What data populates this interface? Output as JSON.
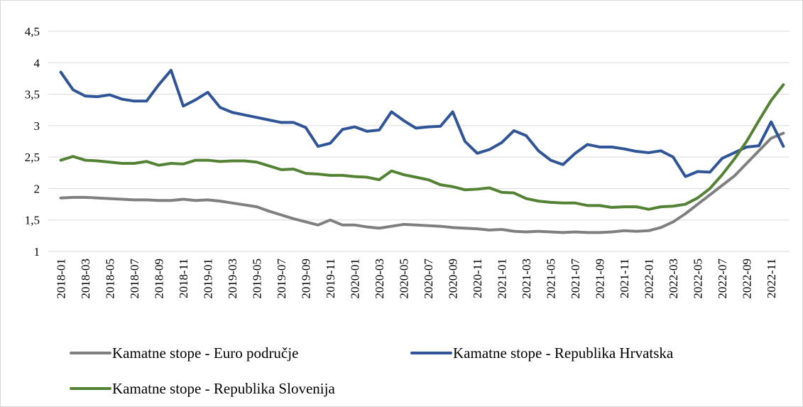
{
  "chart_data": {
    "type": "line",
    "categories": [
      "2018-01",
      null,
      "2018-03",
      null,
      "2018-05",
      null,
      "2018-07",
      null,
      "2018-09",
      null,
      "2018-11",
      null,
      "2019-01",
      null,
      "2019-03",
      null,
      "2019-05",
      null,
      "2019-07",
      null,
      "2019-09",
      null,
      "2019-11",
      null,
      "2020-01",
      null,
      "2020-03",
      null,
      "2020-05",
      null,
      "2020-07",
      null,
      "2020-09",
      null,
      "2020-11",
      null,
      "2021-01",
      null,
      "2021-03",
      null,
      "2021-05",
      null,
      "2021-07",
      null,
      "2021-09",
      null,
      "2021-11",
      null,
      "2022-01",
      null,
      "2022-03",
      null,
      "2022-05",
      null,
      "2022-07",
      null,
      "2022-09",
      null,
      "2022-11",
      null
    ],
    "series": [
      {
        "name": "Kamatne stope - Euro područje",
        "color": "#7f7f7f",
        "values": [
          1.85,
          1.86,
          1.86,
          1.85,
          1.84,
          1.83,
          1.82,
          1.82,
          1.81,
          1.81,
          1.83,
          1.81,
          1.82,
          1.8,
          1.77,
          1.74,
          1.71,
          1.64,
          1.58,
          1.52,
          1.47,
          1.42,
          1.5,
          1.42,
          1.42,
          1.39,
          1.37,
          1.4,
          1.43,
          1.42,
          1.41,
          1.4,
          1.38,
          1.37,
          1.36,
          1.34,
          1.35,
          1.32,
          1.31,
          1.32,
          1.31,
          1.3,
          1.31,
          1.3,
          1.3,
          1.31,
          1.33,
          1.32,
          1.33,
          1.38,
          1.47,
          1.6,
          1.75,
          1.9,
          2.05,
          2.2,
          2.4,
          2.6,
          2.8,
          2.88
        ]
      },
      {
        "name": "Kamatne stope - Republika Hrvatska",
        "color": "#2f5597",
        "values": [
          3.85,
          3.57,
          3.47,
          3.46,
          3.49,
          3.42,
          3.39,
          3.39,
          3.65,
          3.88,
          3.31,
          3.41,
          3.53,
          3.29,
          3.21,
          3.17,
          3.13,
          3.09,
          3.05,
          3.05,
          2.97,
          2.67,
          2.72,
          2.94,
          2.98,
          2.91,
          2.93,
          3.22,
          3.08,
          2.96,
          2.98,
          2.99,
          3.22,
          2.75,
          2.56,
          2.62,
          2.73,
          2.92,
          2.84,
          2.6,
          2.45,
          2.38,
          2.56,
          2.7,
          2.66,
          2.66,
          2.63,
          2.59,
          2.57,
          2.6,
          2.5,
          2.19,
          2.27,
          2.26,
          2.48,
          2.57,
          2.66,
          2.68,
          3.06,
          2.67
        ]
      },
      {
        "name": "Kamatne stope - Republika Slovenija",
        "color": "#548235",
        "values": [
          2.45,
          2.51,
          2.45,
          2.44,
          2.42,
          2.4,
          2.4,
          2.43,
          2.37,
          2.4,
          2.39,
          2.45,
          2.45,
          2.43,
          2.44,
          2.44,
          2.42,
          2.36,
          2.3,
          2.31,
          2.24,
          2.23,
          2.21,
          2.21,
          2.19,
          2.18,
          2.14,
          2.28,
          2.22,
          2.18,
          2.14,
          2.06,
          2.03,
          1.98,
          1.99,
          2.01,
          1.94,
          1.93,
          1.84,
          1.8,
          1.78,
          1.77,
          1.77,
          1.73,
          1.73,
          1.7,
          1.71,
          1.71,
          1.67,
          1.71,
          1.72,
          1.75,
          1.85,
          2.0,
          2.22,
          2.47,
          2.75,
          3.08,
          3.4,
          3.65
        ]
      }
    ],
    "ylim": [
      1,
      4.5
    ],
    "yticks": [
      1,
      {
        "value": 1.5,
        "label": "1,5"
      },
      2,
      {
        "value": 2.5,
        "label": "2,5"
      },
      3,
      {
        "value": 3.5,
        "label": "3,5"
      },
      4,
      {
        "value": 4.5,
        "label": "4,5"
      }
    ],
    "grid": true,
    "legend": "bottom"
  }
}
